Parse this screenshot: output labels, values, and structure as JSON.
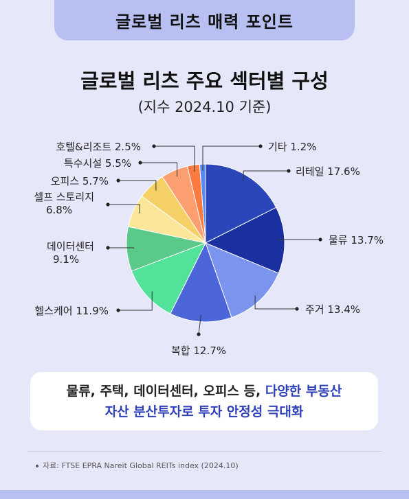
{
  "header": {
    "label": "글로벌 리츠 매력 포인트"
  },
  "chart_data": {
    "type": "pie",
    "title": "글로벌 리츠 주요 섹터별 구성",
    "subtitle": "(지수 2024.10 기준)",
    "unit": "%",
    "slices": [
      {
        "name": "리테일",
        "value": 17.6,
        "label": "리테일 17.6%",
        "color": "#2b46b8"
      },
      {
        "name": "물류",
        "value": 13.7,
        "label": "물류 13.7%",
        "color": "#1a30a0"
      },
      {
        "name": "주거",
        "value": 13.4,
        "label": "주거 13.4%",
        "color": "#7b94ee"
      },
      {
        "name": "복합",
        "value": 12.7,
        "label": "복합 12.7%",
        "color": "#4c66d9"
      },
      {
        "name": "헬스케어",
        "value": 11.9,
        "label": "헬스케어 11.9%",
        "color": "#52e29a"
      },
      {
        "name": "데이터센터",
        "value": 9.1,
        "label_lines": [
          "데이터센터",
          "9.1%"
        ],
        "color": "#5ac989"
      },
      {
        "name": "셀프 스토리지",
        "value": 6.8,
        "label_lines": [
          "셀프 스토리지",
          "6.8%"
        ],
        "color": "#fce699"
      },
      {
        "name": "오피스",
        "value": 5.7,
        "label": "오피스 5.7%",
        "color": "#f5d067"
      },
      {
        "name": "특수시설",
        "value": 5.5,
        "label": "특수시설 5.5%",
        "color": "#fb9e70"
      },
      {
        "name": "호텔&리조트",
        "value": 2.5,
        "label": "호텔&리조트 2.5%",
        "color": "#fb7a3e"
      },
      {
        "name": "기타",
        "value": 1.2,
        "label": "기타 1.2%",
        "color": "#5a8bf0"
      }
    ]
  },
  "callout": {
    "line1_plain": "물류, 주택, 데이터센터, 오피스 등, ",
    "line1_highlight": "다양한 부동산",
    "line2_highlight": "자산 분산투자로 투자 안정성 극대화"
  },
  "source": {
    "text": "자료: FTSE EPRA Nareit Global REITs index (2024.10)"
  }
}
